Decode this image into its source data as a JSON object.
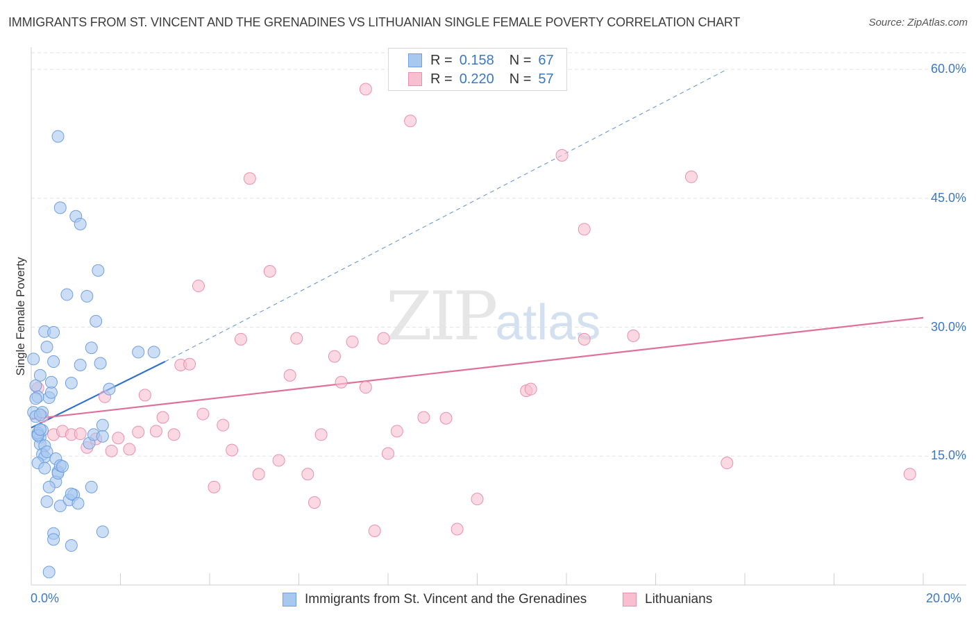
{
  "title": "IMMIGRANTS FROM ST. VINCENT AND THE GRENADINES VS LITHUANIAN SINGLE FEMALE POVERTY CORRELATION CHART",
  "source": "Source: ZipAtlas.com",
  "watermark": {
    "zip": "ZIP",
    "atlas": "atlas"
  },
  "colors": {
    "blue": "#a9c8f0",
    "blue_edge": "#6f9fe0",
    "blue_line": "#2f72cc",
    "pink": "#f7bfd0",
    "pink_edge": "#eb8fad",
    "pink_line": "#e0709a",
    "tick_text": "#3b78c4"
  },
  "legend": {
    "r_label": "R =",
    "n_label": "N =",
    "rows": [
      {
        "r": "0.158",
        "n": "67"
      },
      {
        "r": "0.220",
        "n": "57"
      }
    ]
  },
  "chart_data": {
    "type": "scatter",
    "title": "IMMIGRANTS FROM ST. VINCENT AND THE GRENADINES VS LITHUANIAN SINGLE FEMALE POVERTY CORRELATION CHART",
    "xlabel": "",
    "ylabel": "Single Female Poverty",
    "xlim": [
      0,
      20
    ],
    "ylim": [
      0,
      60
    ],
    "x_ticks": [
      "0.0%",
      "20.0%"
    ],
    "y_ticks": [
      {
        "value": 15,
        "label": "15.0%"
      },
      {
        "value": 30,
        "label": "30.0%"
      },
      {
        "value": 45,
        "label": "45.0%"
      },
      {
        "value": 60,
        "label": "60.0%"
      }
    ],
    "grid": true,
    "legend_position": "top-center and bottom",
    "series": [
      {
        "name": "Immigrants from St. Vincent and the Grenadines",
        "r": 0.158,
        "n": 67,
        "trend": {
          "x0": 0.0,
          "y0": 18.3,
          "x1": 3.0,
          "y1": 26.0,
          "dashed_to": {
            "x": 15.6,
            "y": 60.0
          }
        },
        "points": [
          [
            0.05,
            26.3
          ],
          [
            0.1,
            23.2
          ],
          [
            0.05,
            20.1
          ],
          [
            0.15,
            21.9
          ],
          [
            0.1,
            19.6
          ],
          [
            0.2,
            17.2
          ],
          [
            0.15,
            17.5
          ],
          [
            0.25,
            18.0
          ],
          [
            0.2,
            16.4
          ],
          [
            0.3,
            16.2
          ],
          [
            0.25,
            15.2
          ],
          [
            0.3,
            14.9
          ],
          [
            0.15,
            14.2
          ],
          [
            0.3,
            13.6
          ],
          [
            0.35,
            15.5
          ],
          [
            0.4,
            21.8
          ],
          [
            0.45,
            22.4
          ],
          [
            0.45,
            23.6
          ],
          [
            0.2,
            24.4
          ],
          [
            0.25,
            20.1
          ],
          [
            0.3,
            29.5
          ],
          [
            0.35,
            27.7
          ],
          [
            0.5,
            26.0
          ],
          [
            0.5,
            29.4
          ],
          [
            0.55,
            14.7
          ],
          [
            0.6,
            13.2
          ],
          [
            0.55,
            12.0
          ],
          [
            0.6,
            13.0
          ],
          [
            0.65,
            13.9
          ],
          [
            0.7,
            13.8
          ],
          [
            0.4,
            11.4
          ],
          [
            0.35,
            9.7
          ],
          [
            0.65,
            9.2
          ],
          [
            0.85,
            9.9
          ],
          [
            0.95,
            10.5
          ],
          [
            0.9,
            10.6
          ],
          [
            1.05,
            9.5
          ],
          [
            1.35,
            11.4
          ],
          [
            1.3,
            16.5
          ],
          [
            1.4,
            17.5
          ],
          [
            1.6,
            17.3
          ],
          [
            1.6,
            18.6
          ],
          [
            1.75,
            22.8
          ],
          [
            1.55,
            25.8
          ],
          [
            1.35,
            27.6
          ],
          [
            1.25,
            33.6
          ],
          [
            0.8,
            33.8
          ],
          [
            1.45,
            30.7
          ],
          [
            1.5,
            36.6
          ],
          [
            1.1,
            25.6
          ],
          [
            0.9,
            23.5
          ],
          [
            0.6,
            52.2
          ],
          [
            0.65,
            43.9
          ],
          [
            1.0,
            42.9
          ],
          [
            1.1,
            42.0
          ],
          [
            2.4,
            27.1
          ],
          [
            2.75,
            27.1
          ],
          [
            0.5,
            6.0
          ],
          [
            0.5,
            5.3
          ],
          [
            0.9,
            4.6
          ],
          [
            1.6,
            6.2
          ],
          [
            0.4,
            1.5
          ],
          [
            0.15,
            17.7
          ],
          [
            0.2,
            19.8
          ],
          [
            0.1,
            21.7
          ],
          [
            0.15,
            17.4
          ],
          [
            0.2,
            18.1
          ]
        ]
      },
      {
        "name": "Lithuanians",
        "r": 0.22,
        "n": 57,
        "trend": {
          "x0": 0.0,
          "y0": 19.3,
          "x1": 20.0,
          "y1": 31.1
        },
        "points": [
          [
            0.15,
            22.9
          ],
          [
            0.25,
            19.6
          ],
          [
            0.5,
            17.5
          ],
          [
            0.7,
            17.9
          ],
          [
            0.9,
            17.5
          ],
          [
            1.1,
            17.6
          ],
          [
            1.25,
            16.0
          ],
          [
            1.45,
            17.0
          ],
          [
            1.65,
            21.9
          ],
          [
            1.8,
            15.6
          ],
          [
            1.95,
            17.1
          ],
          [
            2.2,
            15.8
          ],
          [
            2.4,
            17.8
          ],
          [
            2.55,
            22.1
          ],
          [
            2.8,
            17.9
          ],
          [
            2.95,
            19.5
          ],
          [
            3.2,
            17.5
          ],
          [
            3.35,
            25.6
          ],
          [
            3.55,
            25.7
          ],
          [
            3.75,
            34.8
          ],
          [
            3.85,
            19.9
          ],
          [
            4.1,
            11.4
          ],
          [
            4.3,
            18.6
          ],
          [
            4.5,
            15.7
          ],
          [
            4.7,
            28.6
          ],
          [
            4.9,
            47.3
          ],
          [
            5.1,
            12.9
          ],
          [
            5.35,
            36.5
          ],
          [
            5.55,
            14.5
          ],
          [
            5.8,
            24.4
          ],
          [
            5.95,
            28.7
          ],
          [
            6.2,
            12.9
          ],
          [
            6.35,
            9.6
          ],
          [
            6.5,
            17.5
          ],
          [
            6.8,
            26.6
          ],
          [
            6.95,
            23.6
          ],
          [
            7.2,
            28.3
          ],
          [
            7.5,
            57.7
          ],
          [
            7.5,
            23.0
          ],
          [
            7.7,
            6.3
          ],
          [
            7.9,
            28.7
          ],
          [
            8.0,
            15.3
          ],
          [
            8.2,
            17.9
          ],
          [
            8.5,
            54.0
          ],
          [
            8.8,
            19.5
          ],
          [
            9.3,
            19.4
          ],
          [
            9.55,
            6.5
          ],
          [
            10.0,
            10.0
          ],
          [
            11.1,
            22.6
          ],
          [
            11.2,
            22.8
          ],
          [
            11.9,
            50.0
          ],
          [
            12.4,
            28.6
          ],
          [
            12.4,
            41.4
          ],
          [
            13.5,
            29.0
          ],
          [
            14.8,
            47.5
          ],
          [
            15.6,
            14.2
          ],
          [
            19.7,
            12.9
          ]
        ]
      }
    ]
  }
}
